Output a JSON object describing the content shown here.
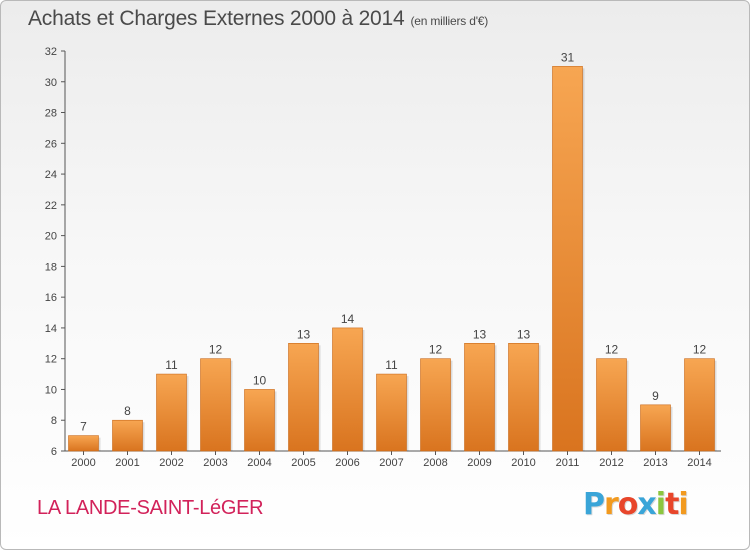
{
  "title": "Achats et Charges Externes 2000 à 2014",
  "subtitle": "(en milliers d'€)",
  "commune": "LA LANDE-SAINT-LéGER",
  "brand": {
    "letters": [
      "P",
      "r",
      "o",
      "x",
      "i",
      "t",
      "i"
    ],
    "colors": [
      "#3aa5d8",
      "#f29a1f",
      "#e8462b",
      "#3aa5d8",
      "#8cc63f",
      "#e8462b",
      "#f29a1f"
    ]
  },
  "colors": {
    "bar_light": "#f7a652",
    "bar_dark": "#d9741f",
    "title": "#4a4a4a",
    "commune": "#d2225a"
  },
  "chart_data": {
    "type": "bar",
    "categories": [
      "2000",
      "2001",
      "2002",
      "2003",
      "2004",
      "2005",
      "2006",
      "2007",
      "2008",
      "2009",
      "2010",
      "2011",
      "2012",
      "2013",
      "2014"
    ],
    "values": [
      7,
      8,
      11,
      12,
      10,
      13,
      14,
      11,
      12,
      13,
      13,
      31,
      12,
      9,
      12
    ],
    "ylim": [
      6,
      32
    ],
    "yticks": [
      6,
      8,
      10,
      12,
      14,
      16,
      18,
      20,
      22,
      24,
      26,
      28,
      30,
      32
    ],
    "grid": false,
    "xlabel": "",
    "ylabel": ""
  }
}
